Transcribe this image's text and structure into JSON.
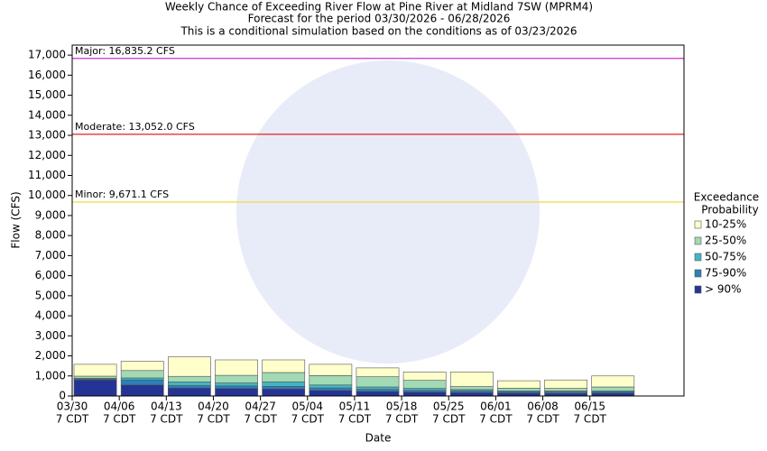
{
  "chart_data": {
    "type": "stacked_bar",
    "title": "Weekly Chance of Exceeding River Flow at Pine River at Midland 7SW (MPRM4)",
    "subtitle": "Forecast for the period 03/30/2026 - 06/28/2026",
    "subtitle2": "This is a conditional simulation based on the conditions as of 03/23/2026",
    "y_label": "Flow (CFS)",
    "x_label": "Date",
    "legend_title": [
      "Exceedance",
      "Probability"
    ],
    "categories": [
      "03/30",
      "04/06",
      "04/13",
      "04/20",
      "04/27",
      "05/04",
      "05/11",
      "05/18",
      "05/25",
      "06/01",
      "06/08",
      "06/15"
    ],
    "category_sublabels": [
      "7 CDT",
      "7 CDT",
      "7 CDT",
      "7 CDT",
      "7 CDT",
      "7 CDT",
      "7 CDT",
      "7 CDT",
      "7 CDT",
      "7 CDT",
      "7 CDT",
      "7 CDT"
    ],
    "series": [
      {
        "name": "> 90%",
        "color": "#253494",
        "values": [
          810,
          550,
          400,
          380,
          350,
          280,
          230,
          200,
          170,
          150,
          140,
          150
        ]
      },
      {
        "name": "75-90%",
        "color": "#2c7fb8",
        "values": [
          40,
          250,
          120,
          120,
          130,
          120,
          100,
          80,
          80,
          60,
          60,
          60
        ]
      },
      {
        "name": "50-75%",
        "color": "#41b6c4",
        "values": [
          30,
          100,
          180,
          150,
          220,
          150,
          120,
          100,
          70,
          50,
          50,
          50
        ]
      },
      {
        "name": "25-50%",
        "color": "#a1dab4",
        "values": [
          110,
          370,
          280,
          380,
          470,
          470,
          510,
          400,
          150,
          130,
          130,
          190
        ]
      },
      {
        "name": "10-25%",
        "color": "#ffffcc",
        "values": [
          590,
          460,
          970,
          770,
          630,
          560,
          440,
          420,
          730,
          370,
          420,
          550
        ]
      }
    ],
    "thresholds": [
      {
        "label": "Major: 16,835.2 CFS",
        "value": 16835.2,
        "color": "#cc33cc"
      },
      {
        "label": "Moderate: 13,052.0 CFS",
        "value": 13052.0,
        "color": "#dd2222"
      },
      {
        "label": "Minor: 9,671.1 CFS",
        "value": 9671.1,
        "color": "#eedd44"
      }
    ],
    "ylim": [
      0,
      17500
    ],
    "yticks": [
      0,
      {
        "value": 1000,
        "label": "1,000"
      },
      {
        "value": 2000,
        "label": "2,000"
      },
      {
        "value": 3000,
        "label": "3,000"
      },
      {
        "value": 4000,
        "label": "4,000"
      },
      {
        "value": 5000,
        "label": "5,000"
      },
      {
        "value": 6000,
        "label": "6,000"
      },
      {
        "value": 7000,
        "label": "7,000"
      },
      {
        "value": 8000,
        "label": "8,000"
      },
      {
        "value": 9000,
        "label": "9,000"
      },
      {
        "value": 10000,
        "label": "10,000"
      },
      {
        "value": 11000,
        "label": "11,000"
      },
      {
        "value": 12000,
        "label": "12,000"
      },
      {
        "value": 13000,
        "label": "13,000"
      },
      {
        "value": 14000,
        "label": "14,000"
      },
      {
        "value": 15000,
        "label": "15,000"
      },
      {
        "value": 16000,
        "label": "16,000"
      },
      {
        "value": 17000,
        "label": "17,000"
      }
    ]
  }
}
